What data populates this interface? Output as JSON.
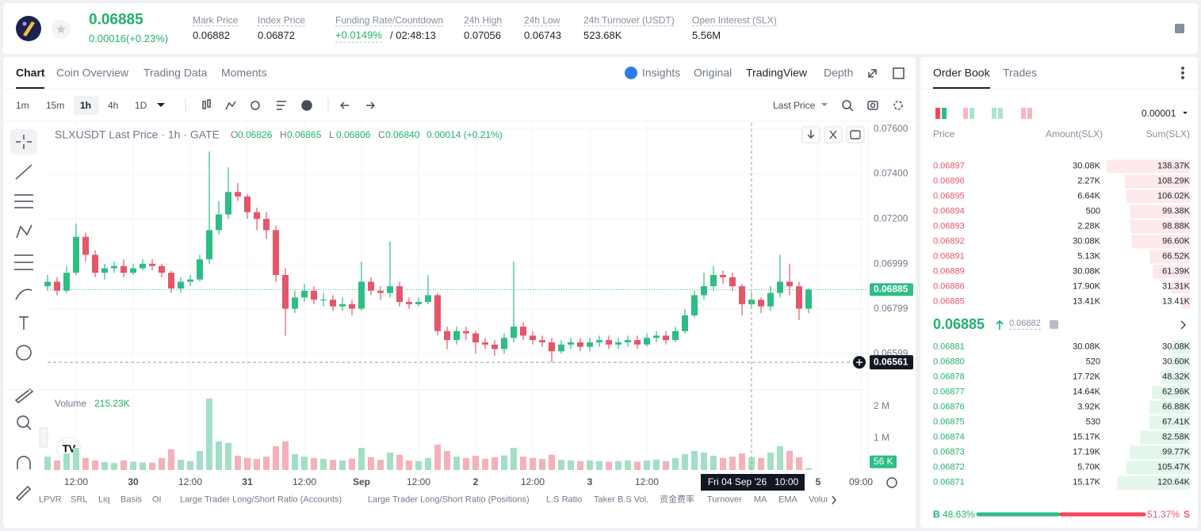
{
  "header": {
    "price": "0.06885",
    "change": "0.00016(+0.23%)",
    "stats": [
      {
        "label": "Mark Price",
        "value": "0.06882"
      },
      {
        "label": "Index Price",
        "value": "0.06872"
      },
      {
        "label": "Funding Rate/Countdown",
        "value": "+0.0149%",
        "extra": "/ 02:48:13"
      },
      {
        "label": "24h High",
        "value": "0.07056"
      },
      {
        "label": "24h Low",
        "value": "0.06743"
      },
      {
        "label": "24h Turnover (USDT)",
        "value": "523.68K"
      },
      {
        "label": "Open Interest (SLX)",
        "value": "5.56M"
      }
    ]
  },
  "chart_tabs": [
    "Chart",
    "Coin Overview",
    "Trading Data",
    "Moments"
  ],
  "view_tabs": [
    "Insights",
    "Original",
    "TradingView",
    "Depth"
  ],
  "intervals": [
    "1m",
    "15m",
    "1h",
    "4h",
    "1D"
  ],
  "price_source": "Last Price",
  "indicators": [
    "LPVR",
    "SRL",
    "Liq",
    "Basis",
    "OI",
    "Large Trader Long/Short Ratio (Accounts)",
    "Large Trader Long/Short Ratio (Positions)",
    "L.S Ratio",
    "Taker B.S Vol.",
    "资金费率",
    "Turnover",
    "MA",
    "EMA",
    "Volume"
  ],
  "chart_data": {
    "type": "candlestick",
    "title": "SLXUSDT Last Price · 1h · GATE",
    "readout": [
      {
        "key": "O",
        "value": "0.06826"
      },
      {
        "key": "H",
        "value": "0.06865"
      },
      {
        "key": "L",
        "value": "0.06806"
      },
      {
        "key": "C",
        "value": "0.06840"
      }
    ],
    "readout_change": "0.00014 (+0.21%)",
    "up_color": "#2ebd85",
    "down_color": "#e5566a",
    "x": [
      -6,
      -4,
      -2,
      0,
      2,
      4,
      6,
      8,
      10,
      12,
      14,
      16,
      18,
      20,
      22,
      24,
      26,
      28,
      30,
      32,
      34,
      36,
      38,
      40,
      42,
      44,
      46,
      48,
      50,
      52,
      54,
      56,
      58,
      60,
      62,
      64,
      66,
      68,
      70,
      72,
      74,
      76,
      78,
      80,
      82,
      84,
      86,
      88,
      90,
      92,
      94,
      96,
      98,
      100,
      102,
      104,
      106,
      108,
      110,
      112,
      114,
      116,
      118,
      120,
      122,
      124,
      126,
      128,
      130,
      132,
      134,
      136,
      138,
      140,
      142,
      144,
      146,
      148,
      150,
      152,
      154
    ],
    "open": [
      0.069,
      0.0692,
      0.0688,
      0.0696,
      0.0712,
      0.0704,
      0.0696,
      0.0698,
      0.0699,
      0.0696,
      0.0698,
      0.07,
      0.0699,
      0.0696,
      0.0689,
      0.0692,
      0.0693,
      0.0702,
      0.0715,
      0.0722,
      0.0732,
      0.073,
      0.0723,
      0.072,
      0.0715,
      0.0695,
      0.068,
      0.0685,
      0.0688,
      0.0684,
      0.0684,
      0.0681,
      0.0682,
      0.068,
      0.0692,
      0.0688,
      0.0687,
      0.069,
      0.0683,
      0.0682,
      0.0683,
      0.0686,
      0.067,
      0.0666,
      0.067,
      0.0669,
      0.0665,
      0.0664,
      0.0662,
      0.0667,
      0.0672,
      0.0668,
      0.0666,
      0.0665,
      0.0661,
      0.0664,
      0.0665,
      0.0663,
      0.0665,
      0.0666,
      0.0664,
      0.0665,
      0.0666,
      0.0664,
      0.0667,
      0.0668,
      0.0666,
      0.067,
      0.0677,
      0.0686,
      0.069,
      0.0695,
      0.0694,
      0.069,
      0.0682,
      0.0684,
      0.0681,
      0.0687,
      0.0692,
      0.069,
      0.068
    ],
    "high": [
      0.0695,
      0.0694,
      0.0699,
      0.0718,
      0.0714,
      0.0706,
      0.07,
      0.0701,
      0.0702,
      0.07,
      0.0702,
      0.0702,
      0.07,
      0.0697,
      0.0694,
      0.0695,
      0.0704,
      0.075,
      0.0728,
      0.0743,
      0.0736,
      0.0731,
      0.0725,
      0.0723,
      0.0717,
      0.0698,
      0.0688,
      0.0691,
      0.069,
      0.0687,
      0.0686,
      0.0685,
      0.0684,
      0.0701,
      0.0694,
      0.069,
      0.071,
      0.0692,
      0.0685,
      0.0685,
      0.0695,
      0.0687,
      0.0672,
      0.0672,
      0.0672,
      0.067,
      0.0667,
      0.0666,
      0.0669,
      0.0701,
      0.0674,
      0.067,
      0.0668,
      0.0667,
      0.0666,
      0.0667,
      0.0667,
      0.0667,
      0.0668,
      0.0668,
      0.0667,
      0.0668,
      0.0668,
      0.0669,
      0.067,
      0.067,
      0.0672,
      0.068,
      0.0688,
      0.0696,
      0.0699,
      0.0697,
      0.0696,
      0.0691,
      0.0687,
      0.0685,
      0.069,
      0.0704,
      0.07,
      0.0692,
      0.0689
    ],
    "low": [
      0.0688,
      0.0686,
      0.0687,
      0.0695,
      0.0701,
      0.0694,
      0.0693,
      0.0696,
      0.0694,
      0.0695,
      0.0697,
      0.0697,
      0.0694,
      0.0687,
      0.0687,
      0.069,
      0.0692,
      0.07,
      0.0713,
      0.072,
      0.0728,
      0.072,
      0.0715,
      0.0711,
      0.0692,
      0.0668,
      0.0678,
      0.0683,
      0.0682,
      0.0681,
      0.0679,
      0.0679,
      0.0677,
      0.0679,
      0.0686,
      0.0684,
      0.0685,
      0.0681,
      0.068,
      0.0681,
      0.0682,
      0.0668,
      0.0662,
      0.0664,
      0.0666,
      0.066,
      0.0662,
      0.0659,
      0.066,
      0.0665,
      0.0666,
      0.0664,
      0.0663,
      0.0656,
      0.066,
      0.0662,
      0.0661,
      0.0661,
      0.0663,
      0.0662,
      0.0662,
      0.0663,
      0.0662,
      0.0663,
      0.0665,
      0.0664,
      0.0665,
      0.0669,
      0.0676,
      0.0684,
      0.0688,
      0.0691,
      0.0688,
      0.0677,
      0.068,
      0.0678,
      0.0679,
      0.0685,
      0.0686,
      0.0675,
      0.0678
    ],
    "close": [
      0.0692,
      0.0688,
      0.0696,
      0.0712,
      0.0704,
      0.0696,
      0.0698,
      0.0699,
      0.0696,
      0.0698,
      0.07,
      0.0699,
      0.0696,
      0.0689,
      0.0692,
      0.0693,
      0.0702,
      0.0715,
      0.0722,
      0.0732,
      0.073,
      0.0723,
      0.072,
      0.0715,
      0.0695,
      0.068,
      0.0685,
      0.0688,
      0.0684,
      0.0684,
      0.0681,
      0.0682,
      0.068,
      0.0692,
      0.0688,
      0.0687,
      0.069,
      0.0683,
      0.0682,
      0.0683,
      0.0686,
      0.067,
      0.0666,
      0.067,
      0.0669,
      0.0665,
      0.0664,
      0.0662,
      0.0667,
      0.0672,
      0.0668,
      0.0666,
      0.0665,
      0.0661,
      0.0664,
      0.0665,
      0.0663,
      0.0665,
      0.0666,
      0.0664,
      0.0665,
      0.0666,
      0.0664,
      0.0667,
      0.0668,
      0.0666,
      0.067,
      0.0677,
      0.0686,
      0.069,
      0.0695,
      0.0694,
      0.069,
      0.0682,
      0.0684,
      0.0681,
      0.0687,
      0.0692,
      0.069,
      0.068,
      0.06885
    ],
    "xlim": [
      -6,
      166.5
    ],
    "xticks": [
      {
        "value": 0,
        "label": "12:00"
      },
      {
        "value": 12,
        "label": "30"
      },
      {
        "value": 24,
        "label": "12:00"
      },
      {
        "value": 36,
        "label": "31"
      },
      {
        "value": 48,
        "label": "12:00"
      },
      {
        "value": 60,
        "label": "Sep"
      },
      {
        "value": 72,
        "label": "12:00"
      },
      {
        "value": 84,
        "label": "2"
      },
      {
        "value": 96,
        "label": "12:00"
      },
      {
        "value": 108,
        "label": "3"
      },
      {
        "value": 120,
        "label": "12:00"
      },
      {
        "value": 156,
        "label": "5"
      },
      {
        "value": 165,
        "label": "09:00"
      }
    ],
    "ylim": [
      0.06445,
      0.07628
    ],
    "yticks": [
      {
        "value": 0.076,
        "label": "0.07600"
      },
      {
        "value": 0.074,
        "label": "0.07400"
      },
      {
        "value": 0.072,
        "label": "0.07200"
      },
      0.06999,
      0.06799,
      0.06599
    ],
    "last_price": 0.06885,
    "crosshair": {
      "x": {
        "value": 142,
        "label": "Fri 04 Sep '26   10:00"
      },
      "y": 0.06561
    },
    "volume": {
      "title": "Volume",
      "readout": "215.23K",
      "up_color": "#a3dfc6",
      "down_color": "#f5b0ba",
      "values": [
        420000,
        300000,
        520000,
        700000,
        380000,
        300000,
        250000,
        220000,
        300000,
        260000,
        240000,
        230000,
        380000,
        650000,
        320000,
        280000,
        600000,
        2250000,
        900000,
        850000,
        450000,
        380000,
        350000,
        420000,
        750000,
        900000,
        500000,
        420000,
        380000,
        350000,
        320000,
        300000,
        360000,
        700000,
        400000,
        320000,
        550000,
        480000,
        300000,
        280000,
        380000,
        800000,
        600000,
        420000,
        380000,
        450000,
        350000,
        400000,
        460000,
        700000,
        420000,
        380000,
        350000,
        480000,
        320000,
        300000,
        280000,
        300000,
        280000,
        260000,
        280000,
        300000,
        260000,
        300000,
        320000,
        280000,
        380000,
        500000,
        600000,
        550000,
        450000,
        380000,
        420000,
        520000,
        400000,
        380000,
        550000,
        750000,
        600000,
        400000,
        56000
      ],
      "value_labels_last": "56 K",
      "ylim": [
        0,
        2500000
      ],
      "yticks": [
        {
          "value": 1000000,
          "label": "1 M"
        },
        {
          "value": 2000000,
          "label": "2 M"
        }
      ]
    }
  },
  "order_book": {
    "tabs": [
      "Order Book",
      "Trades"
    ],
    "precision": "0.00001",
    "columns": [
      "Price",
      "Amount(SLX)",
      "Sum(SLX)"
    ],
    "asks": [
      {
        "price": "0.06897",
        "amount": "30.08K",
        "sum": {
          "value": 138.37,
          "label": "138.37K"
        }
      },
      {
        "price": "0.06896",
        "amount": "2.27K",
        "sum": {
          "value": 108.29,
          "label": "108.29K"
        }
      },
      {
        "price": "0.06895",
        "amount": "6.64K",
        "sum": {
          "value": 106.02,
          "label": "106.02K"
        }
      },
      {
        "price": "0.06894",
        "amount": "500",
        "sum": {
          "value": 99.38,
          "label": "99.38K"
        }
      },
      {
        "price": "0.06893",
        "amount": "2.28K",
        "sum": {
          "value": 98.88,
          "label": "98.88K"
        }
      },
      {
        "price": "0.06892",
        "amount": "30.08K",
        "sum": {
          "value": 96.6,
          "label": "96.60K"
        }
      },
      {
        "price": "0.06891",
        "amount": "5.13K",
        "sum": {
          "value": 66.52,
          "label": "66.52K"
        }
      },
      {
        "price": "0.06889",
        "amount": "30.08K",
        "sum": {
          "value": 61.39,
          "label": "61.39K"
        }
      },
      {
        "price": "0.06886",
        "amount": "17.90K",
        "sum": {
          "value": 31.31,
          "label": "31.31K"
        }
      },
      {
        "price": "0.06885",
        "amount": "13.41K",
        "sum": {
          "value": 13.41,
          "label": "13.41K"
        }
      }
    ],
    "mid": {
      "price": "0.06885",
      "mark": "0.06882"
    },
    "bids": [
      {
        "price": "0.06881",
        "amount": "30.08K",
        "sum": {
          "value": 30.08,
          "label": "30.08K"
        }
      },
      {
        "price": "0.06880",
        "amount": "520",
        "sum": {
          "value": 30.6,
          "label": "30.60K"
        }
      },
      {
        "price": "0.06878",
        "amount": "17.72K",
        "sum": {
          "value": 48.32,
          "label": "48.32K"
        }
      },
      {
        "price": "0.06877",
        "amount": "14.64K",
        "sum": {
          "value": 62.96,
          "label": "62.96K"
        }
      },
      {
        "price": "0.06876",
        "amount": "3.92K",
        "sum": {
          "value": 66.88,
          "label": "66.88K"
        }
      },
      {
        "price": "0.06875",
        "amount": "530",
        "sum": {
          "value": 67.41,
          "label": "67.41K"
        }
      },
      {
        "price": "0.06874",
        "amount": "15.17K",
        "sum": {
          "value": 82.58,
          "label": "82.58K"
        }
      },
      {
        "price": "0.06873",
        "amount": "17.19K",
        "sum": {
          "value": 99.77,
          "label": "99.77K"
        }
      },
      {
        "price": "0.06872",
        "amount": "5.70K",
        "sum": {
          "value": 105.47,
          "label": "105.47K"
        }
      },
      {
        "price": "0.06871",
        "amount": "15.17K",
        "sum": {
          "value": 120.64,
          "label": "120.64K"
        }
      }
    ],
    "ratio": {
      "buy_tag": "B",
      "buy": {
        "value": 48.63,
        "label": "48.63%"
      },
      "sell": {
        "value": 51.37,
        "label": "51.37%"
      },
      "sell_tag": "S"
    }
  }
}
